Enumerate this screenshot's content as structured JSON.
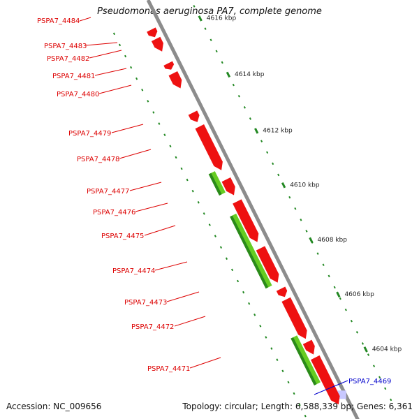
{
  "title": "Pseudomonas aeruginosa PA7, complete genome",
  "footer": {
    "accession": "Accession: NC_009656",
    "summary": "Topology: circular; Length: 6,588,339 bp; Genes: 6,361"
  },
  "scale_labels": [
    "4616 kbp",
    "4614 kbp",
    "4612 kbp",
    "4610 kbp",
    "4608 kbp",
    "4606 kbp",
    "4604 kbp"
  ],
  "gene_labels": [
    {
      "name": "PSPA7_4484",
      "color": "#dd0000"
    },
    {
      "name": "PSPA7_4483",
      "color": "#dd0000"
    },
    {
      "name": "PSPA7_4482",
      "color": "#dd0000"
    },
    {
      "name": "PSPA7_4481",
      "color": "#dd0000"
    },
    {
      "name": "PSPA7_4480",
      "color": "#dd0000"
    },
    {
      "name": "PSPA7_4479",
      "color": "#dd0000"
    },
    {
      "name": "PSPA7_4478",
      "color": "#dd0000"
    },
    {
      "name": "PSPA7_4477",
      "color": "#dd0000"
    },
    {
      "name": "PSPA7_4476",
      "color": "#dd0000"
    },
    {
      "name": "PSPA7_4475",
      "color": "#dd0000"
    },
    {
      "name": "PSPA7_4474",
      "color": "#dd0000"
    },
    {
      "name": "PSPA7_4473",
      "color": "#dd0000"
    },
    {
      "name": "PSPA7_4472",
      "color": "#dd0000"
    },
    {
      "name": "PSPA7_4471",
      "color": "#dd0000"
    },
    {
      "name": "PSPA7_4469",
      "color": "#0000cc"
    }
  ],
  "colors": {
    "backbone": "#8c8c8c",
    "gene_red": "#ee1111",
    "gene_green": "#66cc22",
    "scale_green": "#228822",
    "highlight": "#c8c8ff"
  }
}
